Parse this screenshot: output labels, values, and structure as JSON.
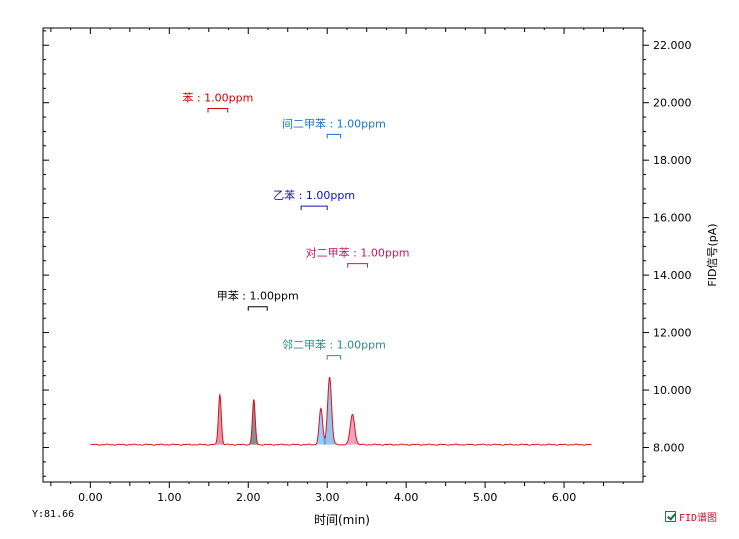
{
  "chart_data": {
    "type": "line",
    "xlabel": "时间(min)",
    "ylabel": "FID信号(pA)",
    "xlim": [
      -0.6,
      7.0
    ],
    "ylim": [
      6.8,
      22.6
    ],
    "x_ticks": [
      "0.00",
      "1.00",
      "2.00",
      "3.00",
      "4.00",
      "5.00",
      "6.00"
    ],
    "y_ticks": [
      "8.000",
      "10.000",
      "12.000",
      "14.000",
      "16.000",
      "18.000",
      "20.000",
      "22.000"
    ],
    "y_axis_position": "right",
    "grid": false,
    "baseline": 8.1,
    "x_range": [
      0.0,
      6.35
    ],
    "peaks": [
      {
        "rt": 1.64,
        "height": 9.85,
        "width": 0.018,
        "color": "#c8102e"
      },
      {
        "rt": 2.07,
        "height": 9.65,
        "width": 0.018,
        "color": "#000000"
      },
      {
        "rt": 2.92,
        "height": 9.35,
        "width": 0.022,
        "color": "#1e90ff"
      },
      {
        "rt": 3.03,
        "height": 10.45,
        "width": 0.025,
        "color": "#1e7ac8"
      },
      {
        "rt": 3.32,
        "height": 9.15,
        "width": 0.028,
        "color": "#e0307a"
      }
    ],
    "annotations": [
      {
        "text": "苯 : 1.00ppm",
        "color": "#d00000",
        "x_start": 1.49,
        "x_end": 1.74,
        "y": 19.8
      },
      {
        "text": "间二甲苯 : 1.00ppm",
        "color": "#1874cd",
        "x_start": 3.0,
        "x_end": 3.17,
        "y": 18.9
      },
      {
        "text": "乙苯 : 1.00ppm",
        "color": "#1010b0",
        "x_start": 2.67,
        "x_end": 3.0,
        "y": 16.4
      },
      {
        "text": "对二甲苯 : 1.00ppm",
        "color": "#c2186a",
        "x_start": 3.26,
        "x_end": 3.51,
        "y": 14.4
      },
      {
        "text": "甲苯 : 1.00ppm",
        "color": "#000000",
        "x_start": 2.0,
        "x_end": 2.24,
        "y": 12.9
      },
      {
        "text": "邻二甲苯 : 1.00ppm",
        "color": "#2e8b8b",
        "x_start": 3.0,
        "x_end": 3.17,
        "y": 11.2
      }
    ],
    "series": [
      {
        "name": "FID谱图",
        "color": "#d4141c"
      }
    ],
    "y_readout": "Y:81.66"
  }
}
